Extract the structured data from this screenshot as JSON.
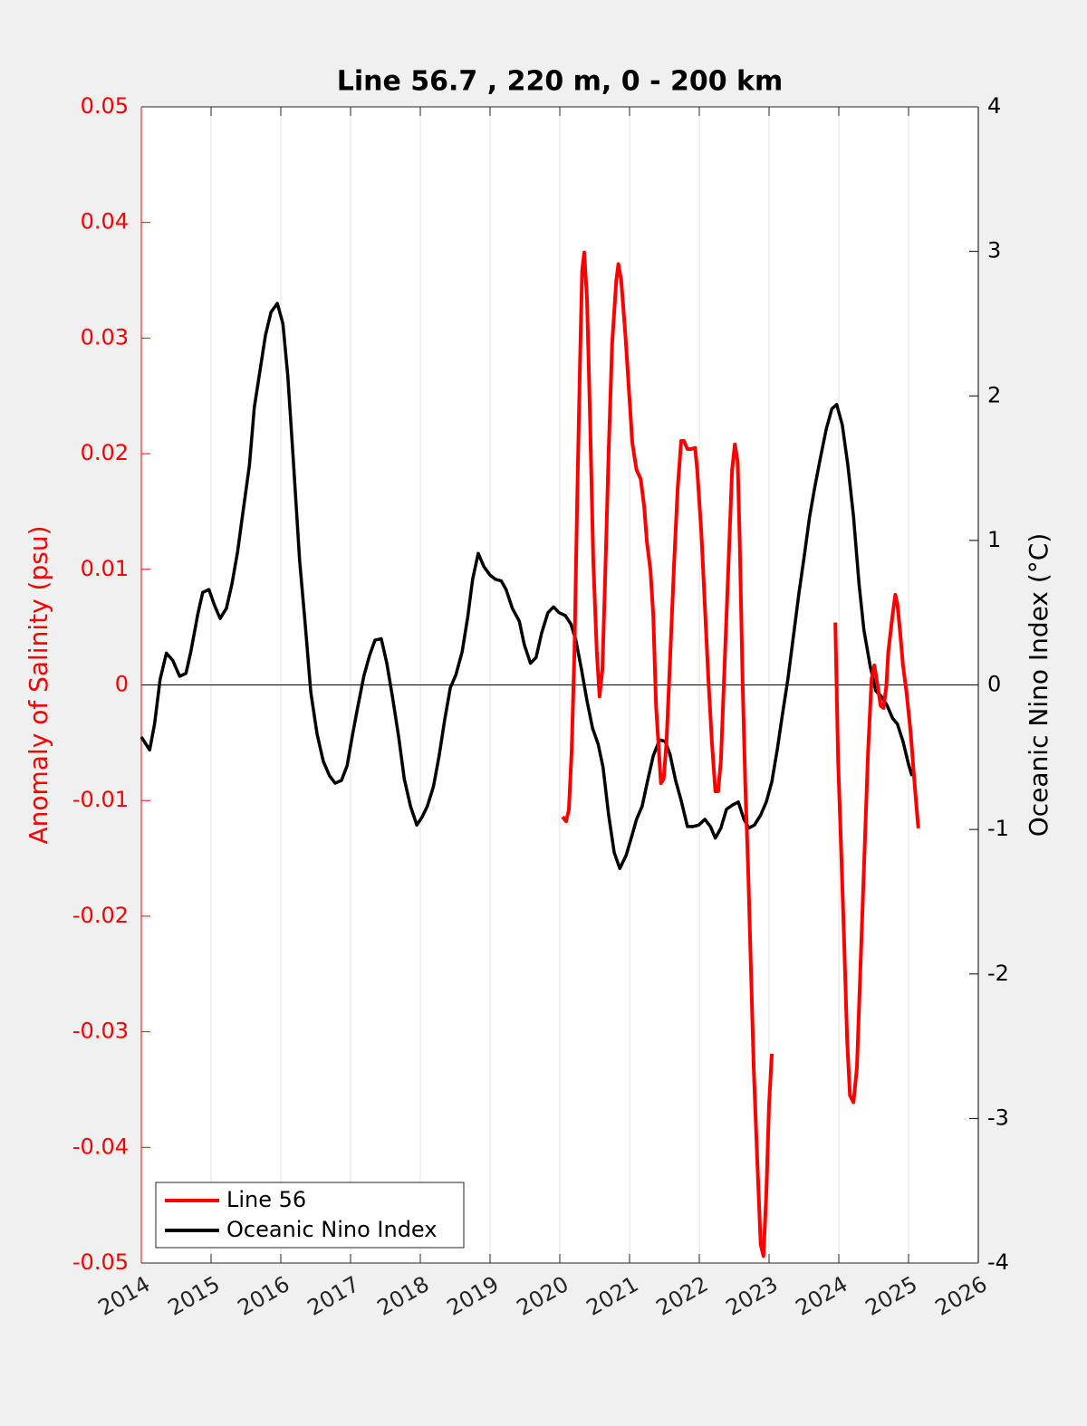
{
  "chart_data": {
    "type": "line",
    "title": "Line 56.7 , 220 m, 0 - 200 km",
    "ylabel": "Anomaly of Salinity (psu)",
    "y2label": "Oceanic Nino Index (°C)",
    "xlim": [
      2014,
      2026
    ],
    "xticks": [
      2014,
      2015,
      2016,
      2017,
      2018,
      2019,
      2020,
      2021,
      2022,
      2023,
      2024,
      2025,
      2026
    ],
    "ylim": [
      -0.05,
      0.05
    ],
    "yticks": [
      -0.05,
      -0.04,
      -0.03,
      -0.02,
      -0.01,
      0,
      0.01,
      0.02,
      0.03,
      0.04,
      0.05
    ],
    "y2lim": [
      -4,
      4
    ],
    "y2ticks": [
      -4,
      -3,
      -2,
      -1,
      0,
      1,
      2,
      3,
      4
    ],
    "xgrid": true,
    "legend": "lower-left",
    "series": [
      {
        "name": "Line 56",
        "color": "#ff0000",
        "x": [
          2020.04,
          2020.09,
          2020.13,
          2020.17,
          2020.21,
          2020.25,
          2020.29,
          2020.32,
          2020.35,
          2020.39,
          2020.43,
          2020.48,
          2020.53,
          2020.57,
          2020.61,
          2020.65,
          2020.7,
          2020.75,
          2020.81,
          2020.84,
          2020.88,
          2020.94,
          2020.99,
          2021.04,
          2021.1,
          2021.16,
          2021.21,
          2021.25,
          2021.3,
          2021.34,
          2021.38,
          2021.42,
          2021.45,
          2021.49,
          2021.53,
          2021.58,
          2021.64,
          2021.69,
          2021.74,
          2021.78,
          2021.83,
          2021.88,
          2021.94,
          2021.97,
          2022.03,
          2022.08,
          2022.13,
          2022.18,
          2022.23,
          2022.27,
          2022.31,
          2022.36,
          2022.42,
          2022.47,
          2022.51,
          2022.55,
          2022.58,
          2022.62,
          2022.66,
          2022.7,
          2022.74,
          2022.78,
          2022.83,
          2022.88,
          2022.92,
          2022.96,
          2023.0,
          2023.04,
          2023.5,
          2023.95,
          2023.99,
          2024.03,
          2024.08,
          2024.12,
          2024.16,
          2024.21,
          2024.26,
          2024.31,
          2024.36,
          2024.42,
          2024.47,
          2024.51,
          2024.55,
          2024.6,
          2024.64,
          2024.68,
          2024.71,
          2024.77,
          2024.81,
          2024.84,
          2024.88,
          2024.92,
          2024.97,
          2025.03,
          2025.09,
          2025.14
        ],
        "values": [
          -0.0114,
          -0.0118,
          -0.0108,
          -0.0057,
          0.0029,
          0.0162,
          0.028,
          0.0358,
          0.0374,
          0.0334,
          0.024,
          0.0107,
          0.0029,
          -0.001,
          0.0013,
          0.0092,
          0.0201,
          0.0295,
          0.035,
          0.0364,
          0.035,
          0.0303,
          0.0256,
          0.0209,
          0.0186,
          0.0178,
          0.0154,
          0.0123,
          0.0099,
          0.006,
          -0.0018,
          -0.0057,
          -0.0085,
          -0.0081,
          -0.0049,
          0.0021,
          0.0107,
          0.017,
          0.0211,
          0.0211,
          0.0204,
          0.0204,
          0.0205,
          0.0186,
          0.0131,
          0.0068,
          0.0005,
          -0.0049,
          -0.0092,
          -0.0092,
          -0.0065,
          0.0013,
          0.0107,
          0.0186,
          0.0208,
          0.0193,
          0.0123,
          0.0005,
          -0.0088,
          -0.0159,
          -0.0245,
          -0.0331,
          -0.041,
          -0.0484,
          -0.0494,
          -0.0441,
          -0.0363,
          -0.0319,
          null,
          0.0054,
          -0.0065,
          -0.0135,
          -0.0229,
          -0.0308,
          -0.0355,
          -0.0361,
          -0.0331,
          -0.0245,
          -0.0159,
          -0.0057,
          0.0005,
          0.0017,
          0.0002,
          -0.0018,
          -0.002,
          -0.0002,
          0.0029,
          0.006,
          0.0078,
          0.007,
          0.0045,
          0.0017,
          -0.0006,
          -0.0041,
          -0.0088,
          -0.0124
        ]
      },
      {
        "name": "Oceanic Nino Index",
        "color": "#000000",
        "axis": "y2",
        "x": [
          2014.0,
          2014.12,
          2014.19,
          2014.27,
          2014.36,
          2014.45,
          2014.55,
          2014.64,
          2014.71,
          2014.81,
          2014.88,
          2014.97,
          2015.05,
          2015.13,
          2015.22,
          2015.3,
          2015.38,
          2015.45,
          2015.55,
          2015.62,
          2015.7,
          2015.78,
          2015.86,
          2015.95,
          2016.03,
          2016.1,
          2016.18,
          2016.27,
          2016.35,
          2016.43,
          2016.52,
          2016.61,
          2016.7,
          2016.78,
          2016.87,
          2016.95,
          2017.03,
          2017.1,
          2017.19,
          2017.27,
          2017.35,
          2017.44,
          2017.52,
          2017.6,
          2017.69,
          2017.77,
          2017.86,
          2017.95,
          2018.03,
          2018.1,
          2018.19,
          2018.27,
          2018.35,
          2018.43,
          2018.51,
          2018.6,
          2018.68,
          2018.75,
          2018.83,
          2018.91,
          2019.0,
          2019.08,
          2019.16,
          2019.23,
          2019.32,
          2019.42,
          2019.49,
          2019.58,
          2019.66,
          2019.74,
          2019.83,
          2019.91,
          2019.99,
          2020.08,
          2020.16,
          2020.23,
          2020.31,
          2020.39,
          2020.47,
          2020.55,
          2020.62,
          2020.7,
          2020.78,
          2020.86,
          2020.95,
          2021.03,
          2021.1,
          2021.18,
          2021.26,
          2021.34,
          2021.43,
          2021.51,
          2021.58,
          2021.66,
          2021.74,
          2021.83,
          2021.91,
          2021.99,
          2022.08,
          2022.16,
          2022.23,
          2022.31,
          2022.39,
          2022.48,
          2022.56,
          2022.64,
          2022.71,
          2022.79,
          2022.88,
          2022.96,
          2023.04,
          2023.12,
          2023.19,
          2023.27,
          2023.35,
          2023.43,
          2023.51,
          2023.58,
          2023.66,
          2023.74,
          2023.82,
          2023.9,
          2023.97,
          2024.05,
          2024.13,
          2024.21,
          2024.29,
          2024.36,
          2024.45,
          2024.53,
          2024.61,
          2024.69,
          2024.77,
          2024.84,
          2024.92,
          2025.0,
          2025.05
        ],
        "values": [
          -0.36,
          -0.45,
          -0.27,
          0.04,
          0.22,
          0.17,
          0.06,
          0.08,
          0.23,
          0.49,
          0.64,
          0.66,
          0.55,
          0.46,
          0.53,
          0.7,
          0.92,
          1.17,
          1.52,
          1.92,
          2.17,
          2.42,
          2.58,
          2.64,
          2.5,
          2.14,
          1.55,
          0.86,
          0.42,
          -0.05,
          -0.34,
          -0.53,
          -0.63,
          -0.68,
          -0.66,
          -0.56,
          -0.34,
          -0.16,
          0.06,
          0.2,
          0.31,
          0.32,
          0.15,
          -0.08,
          -0.36,
          -0.65,
          -0.84,
          -0.97,
          -0.91,
          -0.84,
          -0.7,
          -0.49,
          -0.24,
          -0.02,
          0.07,
          0.23,
          0.47,
          0.73,
          0.91,
          0.82,
          0.76,
          0.73,
          0.72,
          0.66,
          0.53,
          0.44,
          0.28,
          0.15,
          0.19,
          0.36,
          0.5,
          0.54,
          0.5,
          0.48,
          0.42,
          0.31,
          0.11,
          -0.11,
          -0.3,
          -0.41,
          -0.57,
          -0.9,
          -1.16,
          -1.27,
          -1.18,
          -1.05,
          -0.93,
          -0.84,
          -0.66,
          -0.49,
          -0.38,
          -0.39,
          -0.48,
          -0.66,
          -0.8,
          -0.98,
          -0.98,
          -0.97,
          -0.93,
          -0.98,
          -1.06,
          -0.99,
          -0.86,
          -0.83,
          -0.81,
          -0.93,
          -0.99,
          -0.97,
          -0.9,
          -0.81,
          -0.67,
          -0.44,
          -0.21,
          0.04,
          0.34,
          0.64,
          0.91,
          1.16,
          1.38,
          1.58,
          1.77,
          1.91,
          1.94,
          1.8,
          1.52,
          1.17,
          0.7,
          0.38,
          0.13,
          -0.04,
          -0.08,
          -0.14,
          -0.23,
          -0.27,
          -0.39,
          -0.55,
          -0.63
        ]
      }
    ]
  }
}
